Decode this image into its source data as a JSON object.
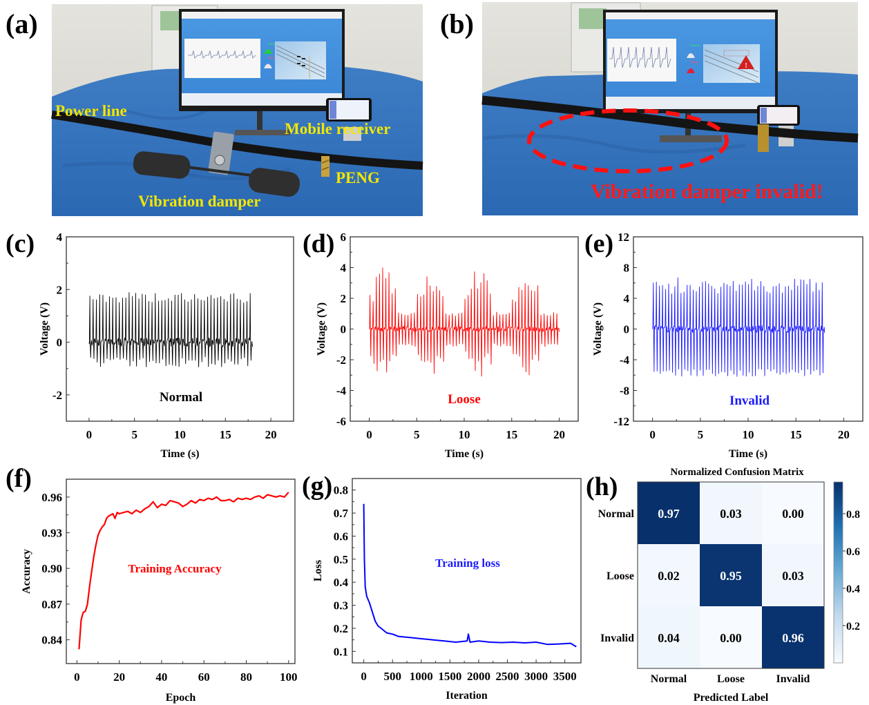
{
  "panel_labels": [
    "(a)",
    "(b)",
    "(c)",
    "(d)",
    "(e)",
    "(f)",
    "(g)",
    "(h)"
  ],
  "photo_a": {
    "annotations": [
      "Power line",
      "Mobile receiver",
      "Vibration damper",
      "PENG"
    ],
    "annotation_color": "#f2e600",
    "screen_status": [
      "Normal",
      "Alarm"
    ]
  },
  "photo_b": {
    "annotation": "Vibration damper invalid!",
    "annotation_color": "#ff1a1a",
    "screen_status": [
      "Normal",
      "Alarm"
    ]
  },
  "chart_data": [
    {
      "id": "c",
      "type": "line",
      "title": "",
      "annotation": "Normal",
      "color": "#000000",
      "annotation_color": "#000000",
      "xlabel": "Time (s)",
      "ylabel": "Voltage (V)",
      "xlim": [
        -2.5,
        22.5
      ],
      "ylim": [
        -3,
        4
      ],
      "xticks": [
        "0",
        "5",
        "10",
        "15",
        "20"
      ],
      "xtick_values": [
        0,
        5,
        10,
        15,
        20
      ],
      "yticks": [
        "-2",
        "0",
        "2",
        "4"
      ],
      "ytick_values": [
        -2,
        0,
        2,
        4
      ],
      "signal": {
        "t_start": 0,
        "t_end": 18,
        "pulses": 50,
        "peak_max": 1.9,
        "peak_min": 1.5,
        "trough_min": -0.95,
        "trough_max": -0.55,
        "noise": 0.35
      }
    },
    {
      "id": "d",
      "type": "line",
      "title": "",
      "annotation": "Loose",
      "color": "#ff0000",
      "annotation_color": "#ff0000",
      "xlabel": "Time (s)",
      "ylabel": "Voltage (V)",
      "xlim": [
        -2,
        22
      ],
      "ylim": [
        -6,
        6
      ],
      "xticks": [
        "0",
        "5",
        "10",
        "15",
        "20"
      ],
      "xtick_values": [
        0,
        5,
        10,
        15,
        20
      ],
      "yticks": [
        "-6",
        "-4",
        "-2",
        "0",
        "2",
        "4",
        "6"
      ],
      "ytick_values": [
        -6,
        -4,
        -2,
        0,
        2,
        4,
        6
      ],
      "signal": {
        "t_start": 0,
        "t_end": 20,
        "pulses": 60,
        "peak_max": 4.1,
        "peak_min": 0.6,
        "trough_min": -3.2,
        "trough_max": -0.8,
        "noise": 0.35
      }
    },
    {
      "id": "e",
      "type": "line",
      "title": "",
      "annotation": "Invalid",
      "color": "#1a1aff",
      "annotation_color": "#1a1aff",
      "xlabel": "Time (s)",
      "ylabel": "Voltage (V)",
      "xlim": [
        -2,
        22
      ],
      "ylim": [
        -12,
        12
      ],
      "xticks": [
        "0",
        "5",
        "10",
        "15",
        "20"
      ],
      "xtick_values": [
        0,
        5,
        10,
        15,
        20
      ],
      "yticks": [
        "-12",
        "-8",
        "-4",
        "0",
        "4",
        "8",
        "12"
      ],
      "ytick_values": [
        -12,
        -8,
        -4,
        0,
        4,
        8,
        12
      ],
      "signal": {
        "t_start": 0,
        "t_end": 18,
        "pulses": 56,
        "peak_max": 6.7,
        "peak_min": 4.6,
        "trough_min": -6.2,
        "trough_max": -5.2,
        "noise": 1.0
      }
    },
    {
      "id": "f",
      "type": "line",
      "title": "",
      "annotation": "Training Accuracy",
      "color": "#ff0000",
      "annotation_color": "#ff0000",
      "xlabel": "Epoch",
      "ylabel": "Accuracy",
      "xlim": [
        -5,
        103
      ],
      "ylim": [
        0.82,
        0.975
      ],
      "xticks": [
        "0",
        "20",
        "40",
        "60",
        "80",
        "100"
      ],
      "xtick_values": [
        0,
        20,
        40,
        60,
        80,
        100
      ],
      "yticks": [
        "0.84",
        "0.87",
        "0.90",
        "0.93",
        "0.96"
      ],
      "ytick_values": [
        0.84,
        0.87,
        0.9,
        0.93,
        0.96
      ],
      "x": [
        1,
        2,
        3,
        4,
        5,
        6,
        7,
        8,
        9,
        10,
        11,
        12,
        13,
        14,
        15,
        16,
        17,
        18,
        19,
        20,
        22,
        24,
        26,
        28,
        30,
        32,
        34,
        36,
        38,
        40,
        42,
        44,
        46,
        48,
        50,
        52,
        54,
        56,
        58,
        60,
        62,
        64,
        66,
        68,
        70,
        72,
        74,
        76,
        78,
        80,
        82,
        84,
        86,
        88,
        90,
        92,
        94,
        96,
        98,
        100
      ],
      "y": [
        0.832,
        0.857,
        0.863,
        0.864,
        0.87,
        0.885,
        0.898,
        0.91,
        0.92,
        0.928,
        0.932,
        0.935,
        0.937,
        0.942,
        0.944,
        0.945,
        0.946,
        0.942,
        0.947,
        0.946,
        0.947,
        0.948,
        0.946,
        0.949,
        0.947,
        0.95,
        0.952,
        0.956,
        0.951,
        0.954,
        0.953,
        0.957,
        0.956,
        0.955,
        0.952,
        0.954,
        0.957,
        0.955,
        0.958,
        0.957,
        0.959,
        0.958,
        0.96,
        0.957,
        0.957,
        0.958,
        0.956,
        0.959,
        0.958,
        0.959,
        0.958,
        0.96,
        0.961,
        0.959,
        0.962,
        0.961,
        0.96,
        0.961,
        0.96,
        0.964
      ]
    },
    {
      "id": "g",
      "type": "line",
      "title": "",
      "annotation": "Training loss",
      "color": "#0000ff",
      "annotation_color": "#1a1aff",
      "xlabel": "Iteration",
      "ylabel": "Loss",
      "xlim": [
        -200,
        3780
      ],
      "ylim": [
        0.05,
        0.85
      ],
      "xticks": [
        "0",
        "500",
        "1000",
        "1500",
        "2000",
        "2500",
        "3000",
        "3500"
      ],
      "xtick_values": [
        0,
        500,
        1000,
        1500,
        2000,
        2500,
        3000,
        3500
      ],
      "yticks": [
        "0.1",
        "0.2",
        "0.3",
        "0.4",
        "0.5",
        "0.6",
        "0.7",
        "0.8"
      ],
      "ytick_values": [
        0.1,
        0.2,
        0.3,
        0.4,
        0.5,
        0.6,
        0.7,
        0.8
      ],
      "x": [
        0,
        10,
        25,
        50,
        100,
        150,
        200,
        250,
        300,
        400,
        500,
        600,
        800,
        1000,
        1200,
        1400,
        1600,
        1800,
        1820,
        1850,
        2000,
        2200,
        2400,
        2600,
        2800,
        3000,
        3200,
        3400,
        3600,
        3700
      ],
      "y": [
        0.74,
        0.5,
        0.38,
        0.34,
        0.31,
        0.27,
        0.23,
        0.21,
        0.2,
        0.18,
        0.175,
        0.165,
        0.16,
        0.155,
        0.15,
        0.145,
        0.14,
        0.145,
        0.175,
        0.14,
        0.145,
        0.14,
        0.138,
        0.14,
        0.137,
        0.14,
        0.13,
        0.132,
        0.135,
        0.12
      ]
    },
    {
      "id": "h",
      "type": "heatmap",
      "title": "Normalized Confusion Matrix",
      "xlabel": "Predicted Label",
      "ylabel": "",
      "row_labels": [
        "Normal",
        "Loose",
        "Invalid"
      ],
      "col_labels": [
        "Normal",
        "Loose",
        "Invalid"
      ],
      "values": [
        [
          0.97,
          0.03,
          0.0
        ],
        [
          0.02,
          0.95,
          0.03
        ],
        [
          0.04,
          0.0,
          0.96
        ]
      ],
      "cell_text": [
        [
          "0.97",
          "0.03",
          "0.00"
        ],
        [
          "0.02",
          "0.95",
          "0.03"
        ],
        [
          "0.04",
          "0.00",
          "0.96"
        ]
      ],
      "colorbar_ticks": [
        "0.2",
        "0.4",
        "0.6",
        "0.8"
      ],
      "colorbar_tick_values": [
        0.2,
        0.4,
        0.6,
        0.8
      ],
      "colorbar_range": [
        0.0,
        0.97
      ],
      "colormap": [
        "#f7fbff",
        "#c6dbef",
        "#6baed6",
        "#2171b5",
        "#08306b"
      ]
    }
  ]
}
